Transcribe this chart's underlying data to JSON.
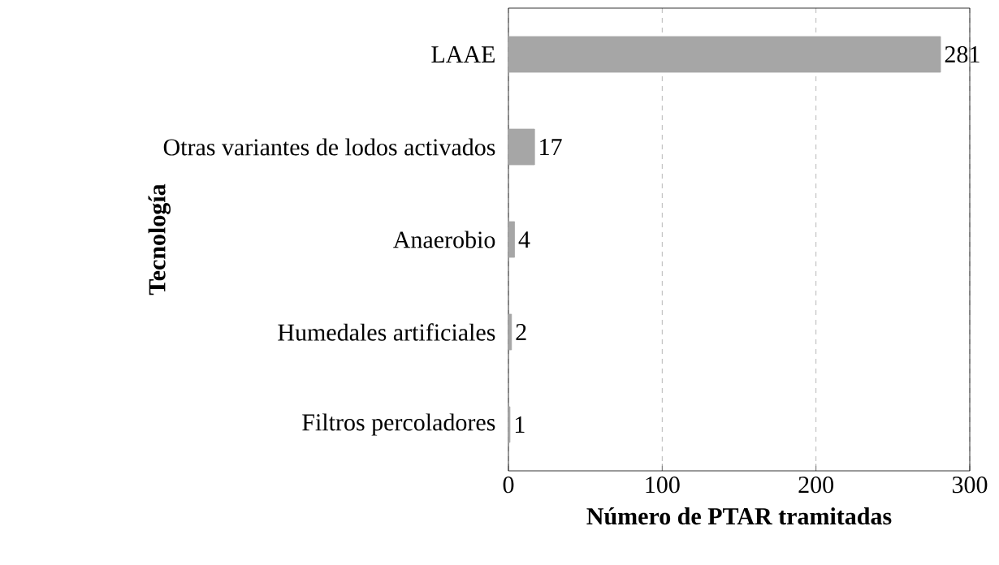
{
  "chart_data": {
    "type": "bar",
    "orientation": "horizontal",
    "categories": [
      "LAAE",
      "Otras variantes de lodos activados",
      "Anaerobio",
      "Humedales artificiales",
      "Filtros percoladores"
    ],
    "values": [
      281,
      17,
      4,
      2,
      1
    ],
    "color": "#a6a6a6",
    "xlabel": "Número de PTAR tramitadas",
    "ylabel": "Tecnología",
    "xlim": [
      0,
      300
    ],
    "xticks": [
      0,
      100,
      200,
      300
    ],
    "grid": "x",
    "data_labels": true
  }
}
